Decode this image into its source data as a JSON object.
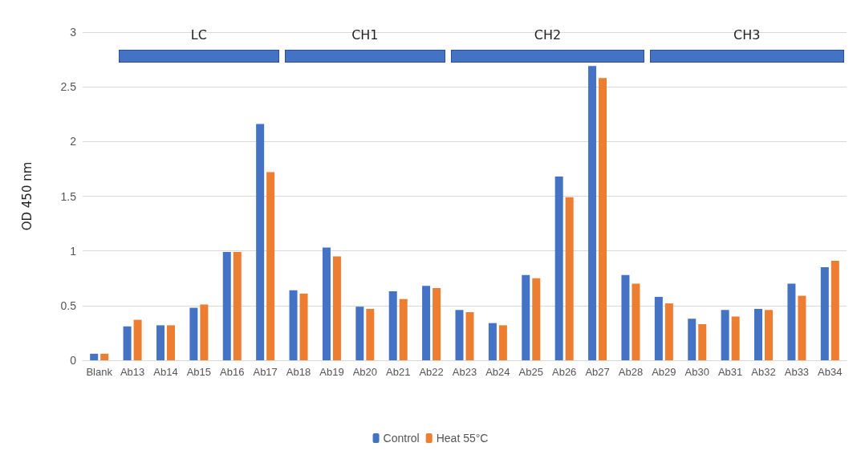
{
  "chart_data": {
    "type": "bar",
    "ylabel": "OD 450 nm",
    "categories": [
      "Blank",
      "Ab13",
      "Ab14",
      "Ab15",
      "Ab16",
      "Ab17",
      "Ab18",
      "Ab19",
      "Ab20",
      "Ab21",
      "Ab22",
      "Ab23",
      "Ab24",
      "Ab25",
      "Ab26",
      "Ab27",
      "Ab28",
      "Ab29",
      "Ab30",
      "Ab31",
      "Ab32",
      "Ab33",
      "Ab34"
    ],
    "series": [
      {
        "name": "Control",
        "color": "#4472c4",
        "values": [
          0.06,
          0.31,
          0.32,
          0.48,
          0.99,
          2.16,
          0.64,
          1.03,
          0.49,
          0.63,
          0.68,
          0.46,
          0.34,
          0.78,
          1.68,
          2.69,
          0.78,
          0.58,
          0.38,
          0.46,
          0.47,
          0.7,
          0.85
        ]
      },
      {
        "name": "Heat 55°C",
        "color": "#ed7d31",
        "values": [
          0.06,
          0.37,
          0.32,
          0.51,
          0.99,
          1.72,
          0.61,
          0.95,
          0.47,
          0.56,
          0.66,
          0.44,
          0.32,
          0.75,
          1.49,
          2.58,
          0.7,
          0.52,
          0.33,
          0.4,
          0.46,
          0.59,
          0.91
        ]
      }
    ],
    "ylim": [
      0,
      3
    ],
    "yticks": [
      0,
      0.5,
      1,
      1.5,
      2,
      2.5,
      3
    ],
    "grid": "y",
    "legend": "bottom",
    "annotations": [
      "LC",
      "CH1",
      "CH2",
      "CH3"
    ]
  }
}
